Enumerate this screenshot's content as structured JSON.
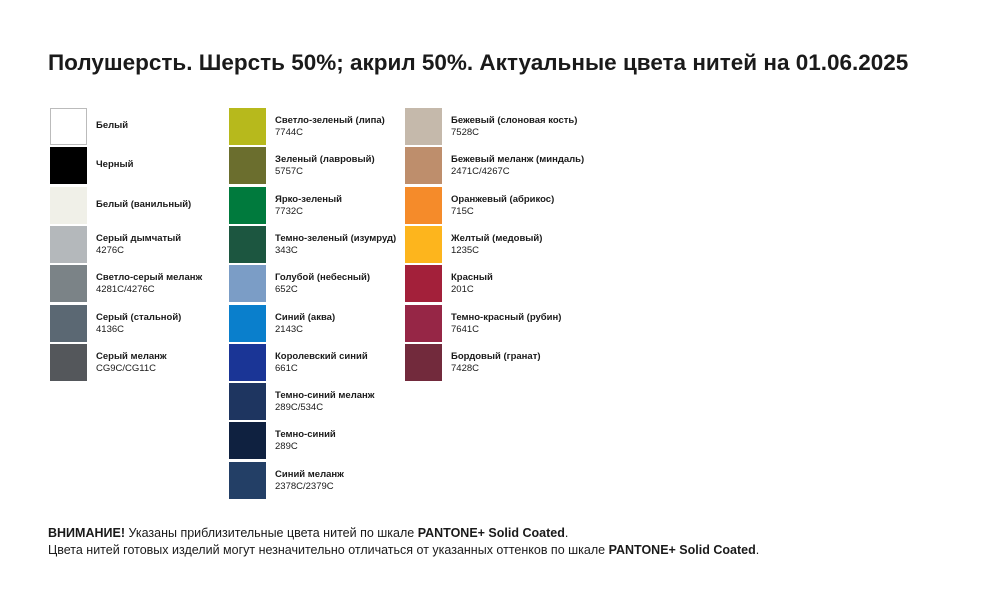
{
  "title": "Полушерсть. Шерсть 50%; акрил 50%. Актуальные цвета нитей на 01.06.2025",
  "columns": [
    [
      {
        "name": "Белый",
        "color": "#ffffff"
      },
      {
        "name": "Черный",
        "color": "#000000"
      },
      {
        "name": "Белый (ванильный)",
        "color": "#f0f0e8"
      },
      {
        "name": "Серый дымчатый",
        "code": "4276C",
        "color": "#b4b8bb"
      },
      {
        "name": "Светло-серый меланж",
        "code": "4281C/4276C",
        "color": "#7b8387"
      },
      {
        "name": "Серый (стальной)",
        "code": "4136C",
        "color": "#5b6873"
      },
      {
        "name": "Серый меланж",
        "code": "CG9C/CG11C",
        "color": "#54575b"
      }
    ],
    [
      {
        "name": "Светло-зеленый (липа)",
        "code": "7744C",
        "color": "#b7b91c"
      },
      {
        "name": "Зеленый (лавровый)",
        "code": "5757C",
        "color": "#6b6e2e"
      },
      {
        "name": "Ярко-зеленый",
        "code": "7732C",
        "color": "#007a3d"
      },
      {
        "name": "Темно-зеленый (изумруд)",
        "code": "343C",
        "color": "#1c5640"
      },
      {
        "name": "Голубой (небесный)",
        "code": "652C",
        "color": "#7b9dc6"
      },
      {
        "name": "Синий (аква)",
        "code": "2143C",
        "color": "#0a7fcc"
      },
      {
        "name": "Королевский синий",
        "code": "661C",
        "color": "#1a3596"
      },
      {
        "name": "Темно-синий меланж",
        "code": "289C/534C",
        "color": "#1e3560"
      },
      {
        "name": "Темно-синий",
        "code": "289C",
        "color": "#0f2140"
      },
      {
        "name": "Синий меланж",
        "code": "2378C/2379C",
        "color": "#233f66"
      }
    ],
    [
      {
        "name": "Бежевый (слоновая кость)",
        "code": "7528C",
        "color": "#c5b9ab"
      },
      {
        "name": "Бежевый меланж (миндаль)",
        "code": "2471C/4267C",
        "color": "#be8e6c"
      },
      {
        "name": "Оранжевый (абрикос)",
        "code": "715C",
        "color": "#f58b2a"
      },
      {
        "name": "Желтый (медовый)",
        "code": "1235C",
        "color": "#fdb51d"
      },
      {
        "name": "Красный",
        "code": "201C",
        "color": "#a3203a"
      },
      {
        "name": "Темно-красный (рубин)",
        "code": "7641C",
        "color": "#962646"
      },
      {
        "name": "Бордовый (гранат)",
        "code": "7428C",
        "color": "#722a3c"
      }
    ]
  ],
  "footer": [
    [
      {
        "text": "ВНИМАНИЕ!",
        "bold": true
      },
      {
        "text": " Указаны приблизительные цвета нитей по шкале ",
        "bold": false
      },
      {
        "text": "PANTONE+ Solid Coated",
        "bold": true
      },
      {
        "text": ".",
        "bold": false
      }
    ],
    [
      {
        "text": "Цвета нитей готовых изделий могут незначительно отличаться от указанных оттенков по шкале ",
        "bold": false
      },
      {
        "text": "PANTONE+ Solid Coated",
        "bold": true
      },
      {
        "text": ".",
        "bold": false
      }
    ]
  ]
}
